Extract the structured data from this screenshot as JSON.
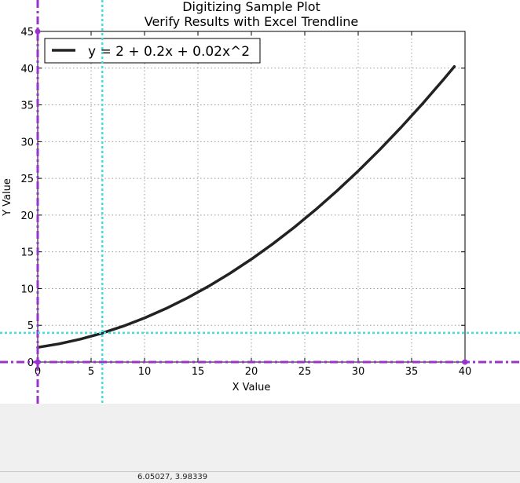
{
  "chart_data": {
    "type": "line",
    "title": "Digitizing Sample Plot",
    "subtitle": "Verify Results with Excel Trendline",
    "xlabel": "X Value",
    "ylabel": "Y Value",
    "xlim": [
      0,
      40
    ],
    "ylim": [
      0,
      45
    ],
    "xticks": [
      0,
      5,
      10,
      15,
      20,
      25,
      30,
      35,
      40
    ],
    "yticks": [
      0,
      5,
      10,
      15,
      20,
      25,
      30,
      35,
      40,
      45
    ],
    "grid": true,
    "legend_position": "top-left",
    "series": [
      {
        "name": "y = 2 + 0.2x + 0.02x^2",
        "color": "#222222",
        "x": [
          0,
          2,
          4,
          6,
          8,
          10,
          12,
          14,
          16,
          18,
          20,
          22,
          24,
          26,
          28,
          30,
          32,
          34,
          36,
          38,
          39
        ],
        "y": [
          2.0,
          2.48,
          3.12,
          3.92,
          4.88,
          6.0,
          7.28,
          8.72,
          10.32,
          12.08,
          14.0,
          16.08,
          18.32,
          20.72,
          23.28,
          26.0,
          28.88,
          31.92,
          35.12,
          38.48,
          40.22
        ]
      }
    ]
  },
  "cursor": {
    "crosshair_color": "#40e0e0",
    "x": 6.05027,
    "y": 3.98339
  },
  "axes_overlay_color": "#9933cc",
  "status": {
    "coordinates_text": "6.05027, 3.98339"
  }
}
